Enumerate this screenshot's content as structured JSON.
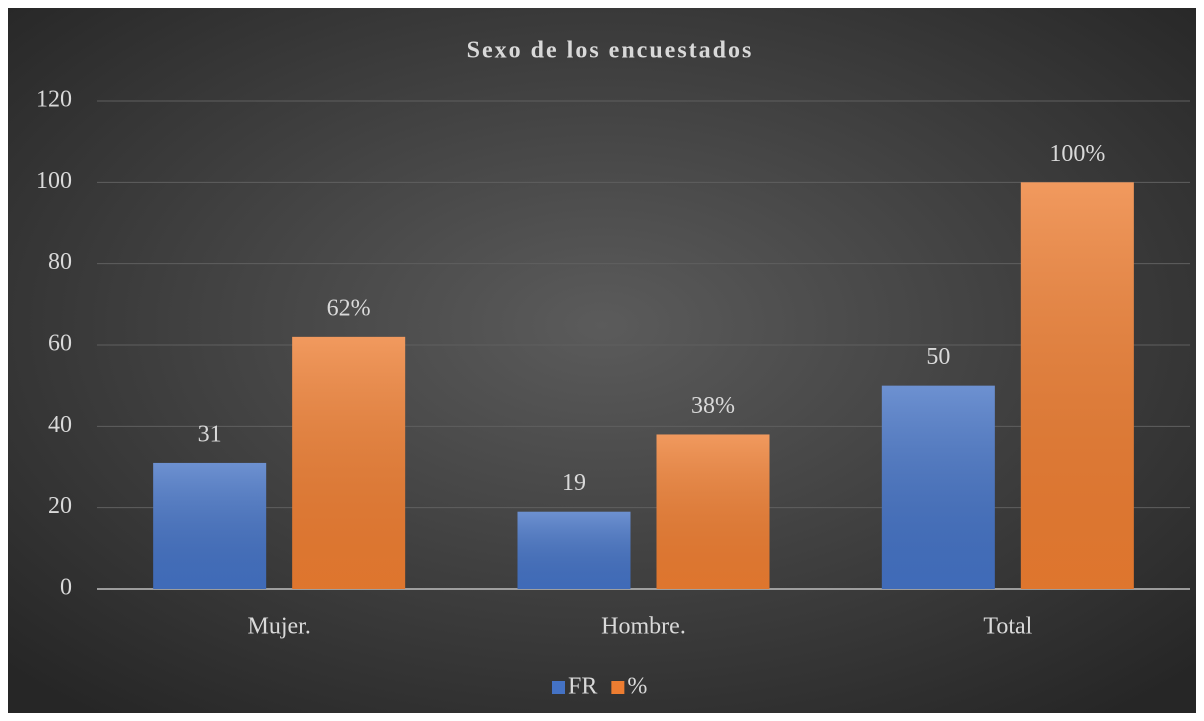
{
  "chart_data": {
    "type": "bar",
    "title": "Sexo de los encuestados",
    "categories": [
      "Mujer.",
      "Hombre.",
      "Total"
    ],
    "series": [
      {
        "name": "FR",
        "color": "#4472c4",
        "values": [
          31,
          19,
          50
        ]
      },
      {
        "name": "%",
        "color": "#ed7d31",
        "values": [
          62,
          38,
          100
        ],
        "value_labels": [
          "62%",
          "38%",
          "100%"
        ]
      }
    ],
    "ylim": [
      0,
      120
    ],
    "yticks": [
      0,
      20,
      40,
      60,
      80,
      100,
      120
    ],
    "grid": true,
    "legend": "bottom"
  }
}
